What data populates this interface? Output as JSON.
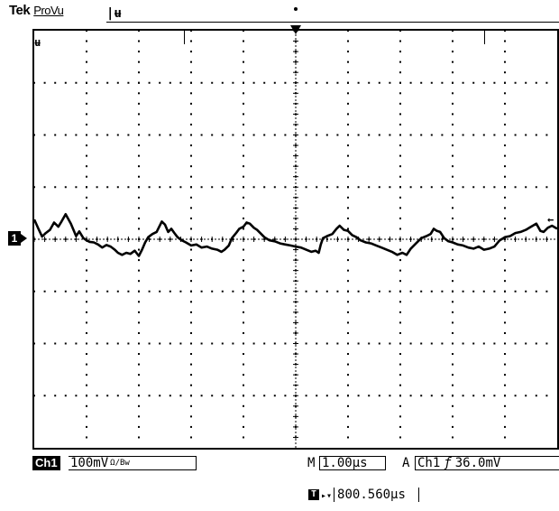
{
  "header": {
    "brand": "Tek",
    "mode": "ProVu",
    "acq_marker": "|ʉ"
  },
  "screen": {
    "marker_top_left": "ʉ",
    "channel_ref": "1",
    "trigger_level_marker": "←",
    "grid": {
      "divisions_x": 10,
      "divisions_y": 8
    }
  },
  "status": {
    "channel": "Ch1",
    "ch1_scale": "100mV",
    "ch1_coupling": "Ω/Bw",
    "timebase_prefix": "M",
    "timebase": "1.00μs",
    "trigger_prefix": "A",
    "trigger_source": "Ch1",
    "trigger_slope": "ƒ",
    "trigger_level": "36.0mV"
  },
  "readout": {
    "icon": "T",
    "arrow": "▸▾",
    "position": "800.560μs"
  },
  "waveform": {
    "channel": "Ch1",
    "x_divisions": 10,
    "y_divisions": 8,
    "points": [
      [
        0,
        0.38
      ],
      [
        0.08,
        0.2
      ],
      [
        0.15,
        0.05
      ],
      [
        0.22,
        0.12
      ],
      [
        0.3,
        0.18
      ],
      [
        0.38,
        0.32
      ],
      [
        0.46,
        0.24
      ],
      [
        0.52,
        0.34
      ],
      [
        0.6,
        0.48
      ],
      [
        0.7,
        0.3
      ],
      [
        0.8,
        0.06
      ],
      [
        0.86,
        0.15
      ],
      [
        0.94,
        0.02
      ],
      [
        1.0,
        -0.02
      ],
      [
        1.06,
        -0.05
      ],
      [
        1.14,
        -0.06
      ],
      [
        1.22,
        -0.1
      ],
      [
        1.3,
        -0.16
      ],
      [
        1.38,
        -0.11
      ],
      [
        1.46,
        -0.14
      ],
      [
        1.54,
        -0.2
      ],
      [
        1.6,
        -0.26
      ],
      [
        1.68,
        -0.3
      ],
      [
        1.76,
        -0.26
      ],
      [
        1.84,
        -0.28
      ],
      [
        1.92,
        -0.22
      ],
      [
        2.0,
        -0.32
      ],
      [
        2.06,
        -0.2
      ],
      [
        2.12,
        -0.06
      ],
      [
        2.18,
        0.04
      ],
      [
        2.26,
        0.1
      ],
      [
        2.34,
        0.14
      ],
      [
        2.38,
        0.22
      ],
      [
        2.44,
        0.34
      ],
      [
        2.5,
        0.28
      ],
      [
        2.56,
        0.14
      ],
      [
        2.62,
        0.2
      ],
      [
        2.68,
        0.12
      ],
      [
        2.74,
        0.04
      ],
      [
        2.82,
        -0.02
      ],
      [
        2.9,
        -0.06
      ],
      [
        3.0,
        -0.12
      ],
      [
        3.1,
        -0.1
      ],
      [
        3.2,
        -0.16
      ],
      [
        3.3,
        -0.14
      ],
      [
        3.4,
        -0.18
      ],
      [
        3.5,
        -0.2
      ],
      [
        3.58,
        -0.24
      ],
      [
        3.64,
        -0.2
      ],
      [
        3.72,
        -0.12
      ],
      [
        3.78,
        0.02
      ],
      [
        3.86,
        0.12
      ],
      [
        3.92,
        0.2
      ],
      [
        4.0,
        0.24
      ],
      [
        4.06,
        0.32
      ],
      [
        4.12,
        0.3
      ],
      [
        4.2,
        0.22
      ],
      [
        4.26,
        0.18
      ],
      [
        4.32,
        0.12
      ],
      [
        4.4,
        0.04
      ],
      [
        4.5,
        -0.02
      ],
      [
        4.6,
        -0.04
      ],
      [
        4.7,
        -0.08
      ],
      [
        4.8,
        -0.1
      ],
      [
        4.9,
        -0.12
      ],
      [
        5.0,
        -0.14
      ],
      [
        5.1,
        -0.16
      ],
      [
        5.2,
        -0.2
      ],
      [
        5.3,
        -0.24
      ],
      [
        5.38,
        -0.22
      ],
      [
        5.44,
        -0.26
      ],
      [
        5.48,
        -0.1
      ],
      [
        5.52,
        0.02
      ],
      [
        5.6,
        0.06
      ],
      [
        5.7,
        0.1
      ],
      [
        5.78,
        0.2
      ],
      [
        5.84,
        0.26
      ],
      [
        5.92,
        0.18
      ],
      [
        6.0,
        0.16
      ],
      [
        6.08,
        0.08
      ],
      [
        6.16,
        0.04
      ],
      [
        6.24,
        -0.02
      ],
      [
        6.34,
        -0.06
      ],
      [
        6.44,
        -0.08
      ],
      [
        6.54,
        -0.12
      ],
      [
        6.64,
        -0.16
      ],
      [
        6.74,
        -0.2
      ],
      [
        6.84,
        -0.24
      ],
      [
        6.94,
        -0.3
      ],
      [
        7.04,
        -0.26
      ],
      [
        7.12,
        -0.3
      ],
      [
        7.2,
        -0.18
      ],
      [
        7.3,
        -0.08
      ],
      [
        7.4,
        0.02
      ],
      [
        7.5,
        0.06
      ],
      [
        7.58,
        0.1
      ],
      [
        7.64,
        0.2
      ],
      [
        7.7,
        0.16
      ],
      [
        7.76,
        0.14
      ],
      [
        7.84,
        0.02
      ],
      [
        7.92,
        -0.04
      ],
      [
        8.0,
        -0.06
      ],
      [
        8.1,
        -0.1
      ],
      [
        8.2,
        -0.12
      ],
      [
        8.3,
        -0.16
      ],
      [
        8.4,
        -0.18
      ],
      [
        8.5,
        -0.14
      ],
      [
        8.6,
        -0.2
      ],
      [
        8.7,
        -0.18
      ],
      [
        8.8,
        -0.14
      ],
      [
        8.9,
        -0.02
      ],
      [
        9.0,
        0.04
      ],
      [
        9.1,
        0.06
      ],
      [
        9.2,
        0.12
      ],
      [
        9.3,
        0.14
      ],
      [
        9.4,
        0.18
      ],
      [
        9.5,
        0.24
      ],
      [
        9.6,
        0.3
      ],
      [
        9.68,
        0.16
      ],
      [
        9.74,
        0.14
      ],
      [
        9.82,
        0.22
      ],
      [
        9.9,
        0.26
      ],
      [
        10.0,
        0.2
      ]
    ]
  },
  "colors": {
    "trace": "#000000",
    "background": "#ffffff",
    "grid": "#000000"
  }
}
